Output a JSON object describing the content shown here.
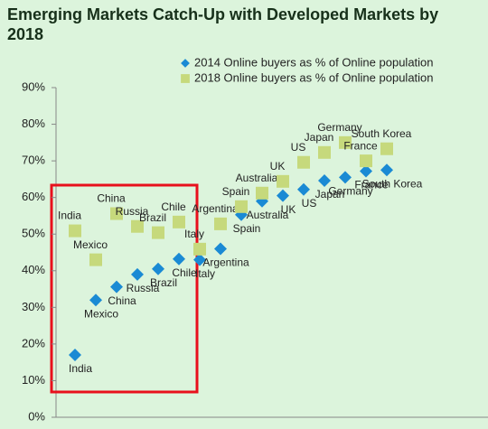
{
  "chart_data": {
    "type": "scatter",
    "title": "Emerging Markets Catch-Up with Developed Markets by 2018",
    "categories": [
      "India",
      "Mexico",
      "China",
      "Russia",
      "Brazil",
      "Chile",
      "Italy",
      "Argentina",
      "Spain",
      "Australia",
      "UK",
      "US",
      "Japan",
      "Germany",
      "France",
      "South Korea"
    ],
    "series": [
      {
        "name": "2014 Online buyers as % of Online population",
        "color": "#1a8ad4",
        "marker": "diamond",
        "values": [
          17,
          32,
          35.6,
          39,
          40.5,
          43.2,
          43,
          46,
          55.3,
          59,
          60.5,
          62.2,
          64.6,
          65.5,
          67.2,
          67.5
        ]
      },
      {
        "name": "2018 Online buyers as % of Online population",
        "color": "#c6d97c",
        "marker": "square",
        "values": [
          50.9,
          43,
          55.6,
          52.1,
          50.4,
          53.3,
          45.9,
          52.8,
          57.5,
          61.2,
          64.4,
          69.6,
          72.3,
          75,
          70,
          73.3
        ]
      }
    ],
    "ylim": [
      0,
      90
    ],
    "yticks": [
      {
        "value": 0,
        "label": "0%"
      },
      {
        "value": 10,
        "label": "10%"
      },
      {
        "value": 20,
        "label": "20%"
      },
      {
        "value": 30,
        "label": "30%"
      },
      {
        "value": 40,
        "label": "40%"
      },
      {
        "value": 50,
        "label": "50%"
      },
      {
        "value": 60,
        "label": "60%"
      },
      {
        "value": 70,
        "label": "70%"
      },
      {
        "value": 80,
        "label": "80%"
      },
      {
        "value": 90,
        "label": "90%"
      }
    ],
    "grid": false,
    "legend": "top-right"
  }
}
